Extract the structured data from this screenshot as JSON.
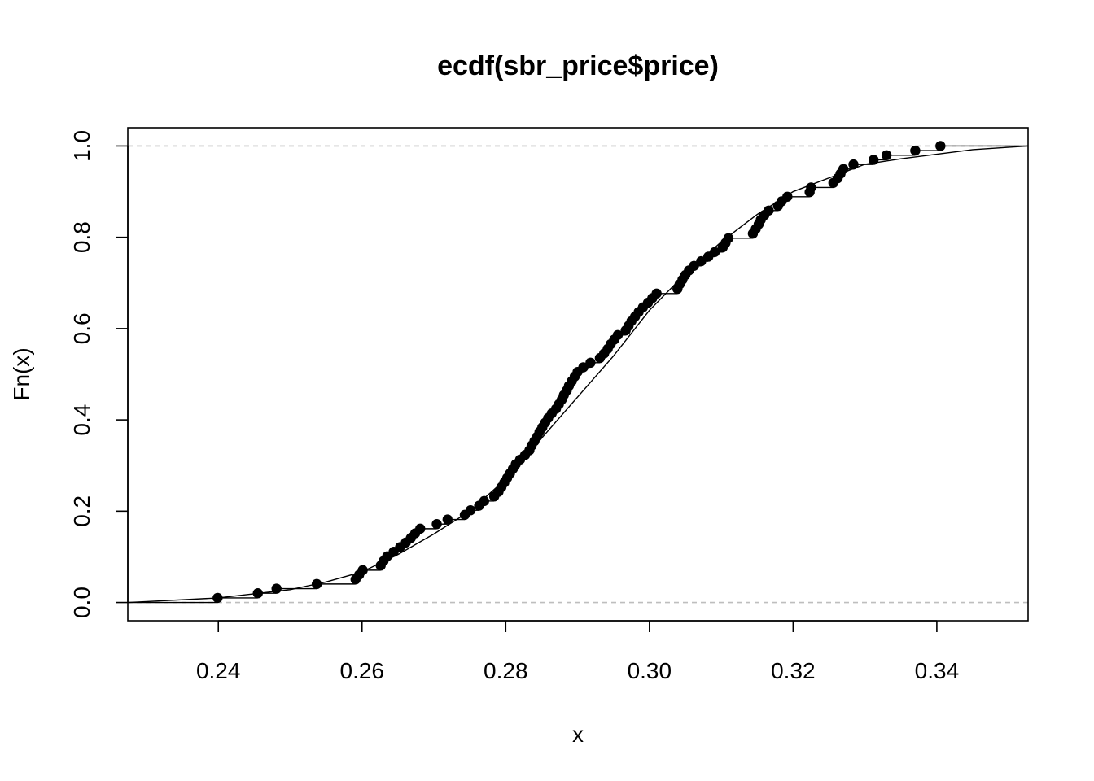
{
  "chart_data": {
    "type": "line",
    "title": "ecdf(sbr_price$price)",
    "xlabel": "x",
    "ylabel": "Fn(x)",
    "xlim": [
      0.2274,
      0.3527
    ],
    "ylim": [
      -0.04,
      1.04
    ],
    "x_ticks": [
      "0.24",
      "0.26",
      "0.28",
      "0.30",
      "0.32",
      "0.34"
    ],
    "y_ticks": [
      "0.0",
      "0.2",
      "0.4",
      "0.6",
      "0.8",
      "1.0"
    ],
    "reference_lines_y": [
      0,
      1
    ],
    "grid": false,
    "legend": "none",
    "colors": {
      "line": "#000000",
      "points": "#000000",
      "reference": "#bebebe"
    },
    "series": [
      {
        "kind": "ecdf-steps",
        "x": [
          0.2399,
          0.2455,
          0.2481,
          0.2537,
          0.2591,
          0.2596,
          0.2601,
          0.2626,
          0.263,
          0.2635,
          0.2644,
          0.2653,
          0.2661,
          0.2668,
          0.2674,
          0.2681,
          0.2704,
          0.2719,
          0.2743,
          0.2751,
          0.2763,
          0.277,
          0.2784,
          0.279,
          0.2794,
          0.2798,
          0.2802,
          0.2806,
          0.281,
          0.2814,
          0.282,
          0.2827,
          0.2833,
          0.2836,
          0.284,
          0.2844,
          0.2847,
          0.2851,
          0.2855,
          0.2859,
          0.2864,
          0.287,
          0.2874,
          0.2878,
          0.2881,
          0.2885,
          0.2888,
          0.2892,
          0.2896,
          0.29,
          0.2908,
          0.2918,
          0.2931,
          0.2937,
          0.2942,
          0.2946,
          0.2951,
          0.2956,
          0.2967,
          0.2971,
          0.2975,
          0.298,
          0.2985,
          0.2991,
          0.2998,
          0.3004,
          0.301,
          0.3039,
          0.3042,
          0.3046,
          0.305,
          0.3055,
          0.3062,
          0.3072,
          0.3082,
          0.3091,
          0.3102,
          0.3106,
          0.311,
          0.3144,
          0.3148,
          0.3152,
          0.3155,
          0.316,
          0.3166,
          0.3179,
          0.3184,
          0.3192,
          0.3223,
          0.3225,
          0.3256,
          0.3262,
          0.3266,
          0.327,
          0.3284,
          0.3312,
          0.333,
          0.337,
          0.3405
        ],
        "y": [
          0.0101,
          0.0202,
          0.0303,
          0.0404,
          0.0505,
          0.0606,
          0.0707,
          0.0808,
          0.0909,
          0.101,
          0.1111,
          0.1212,
          0.1313,
          0.1414,
          0.1515,
          0.1616,
          0.1717,
          0.1818,
          0.1919,
          0.202,
          0.2121,
          0.2222,
          0.2323,
          0.2424,
          0.2525,
          0.2626,
          0.2727,
          0.2828,
          0.2929,
          0.303,
          0.3131,
          0.3232,
          0.3333,
          0.3434,
          0.3535,
          0.3636,
          0.3737,
          0.3838,
          0.3939,
          0.404,
          0.4141,
          0.4242,
          0.4343,
          0.4444,
          0.4545,
          0.4646,
          0.4747,
          0.4848,
          0.4949,
          0.5051,
          0.5152,
          0.5253,
          0.5354,
          0.5455,
          0.5556,
          0.5657,
          0.5758,
          0.5859,
          0.596,
          0.6061,
          0.6162,
          0.6263,
          0.6364,
          0.6465,
          0.6566,
          0.6667,
          0.6768,
          0.6869,
          0.697,
          0.7071,
          0.7172,
          0.7273,
          0.7374,
          0.7475,
          0.7576,
          0.7677,
          0.7778,
          0.7879,
          0.798,
          0.8081,
          0.8182,
          0.8283,
          0.8384,
          0.8485,
          0.8586,
          0.8687,
          0.8788,
          0.8889,
          0.899,
          0.9091,
          0.9192,
          0.9293,
          0.9394,
          0.9495,
          0.9596,
          0.9697,
          0.9798,
          0.9899,
          1.0
        ]
      },
      {
        "kind": "smooth-cdf",
        "x": [
          0.2274,
          0.23,
          0.24,
          0.25,
          0.255,
          0.26,
          0.265,
          0.27,
          0.275,
          0.28,
          0.285,
          0.29,
          0.295,
          0.3,
          0.305,
          0.31,
          0.315,
          0.32,
          0.325,
          0.33,
          0.335,
          0.34,
          0.345,
          0.3527
        ],
        "y": [
          0.0,
          0.002,
          0.01,
          0.028,
          0.045,
          0.067,
          0.105,
          0.15,
          0.2,
          0.27,
          0.36,
          0.45,
          0.54,
          0.64,
          0.72,
          0.79,
          0.85,
          0.9,
          0.93,
          0.96,
          0.972,
          0.982,
          0.992,
          1.0
        ]
      }
    ]
  }
}
